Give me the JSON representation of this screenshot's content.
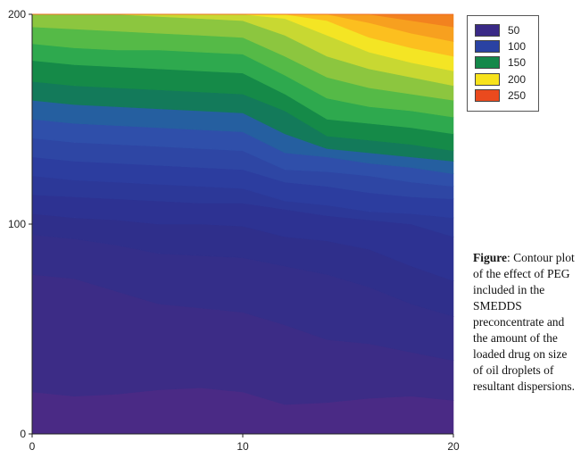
{
  "chart_data": {
    "type": "contour",
    "title": "",
    "xlabel": "",
    "ylabel": "",
    "xlim": [
      0,
      20
    ],
    "ylim": [
      0,
      200
    ],
    "x_ticks": [
      "0",
      "10",
      "20"
    ],
    "y_ticks": [
      "0",
      "100",
      "200"
    ],
    "legend_position": "top-right",
    "levels": [
      {
        "label": "50",
        "color": "#3a2a86"
      },
      {
        "label": "100",
        "color": "#2a42a3"
      },
      {
        "label": "150",
        "color": "#14884a"
      },
      {
        "label": "200",
        "color": "#f7e21c"
      },
      {
        "label": "250",
        "color": "#ea4a1e"
      }
    ],
    "x": [
      0,
      2,
      4,
      6,
      8,
      10,
      12,
      14,
      16,
      18,
      20
    ],
    "boundaries": [
      {
        "value": 10,
        "y": [
          20,
          18,
          19,
          21,
          22,
          20,
          14,
          15,
          17,
          18,
          16
        ]
      },
      {
        "value": 50,
        "y": [
          76,
          74,
          68,
          62,
          60,
          58,
          52,
          45,
          43,
          39,
          35
        ]
      },
      {
        "value": 70,
        "y": [
          95,
          93,
          90,
          86,
          85,
          84,
          80,
          76,
          70,
          62,
          56
        ]
      },
      {
        "value": 85,
        "y": [
          105,
          103,
          102,
          100,
          100,
          99,
          94,
          92,
          88,
          80,
          73
        ]
      },
      {
        "value": 95,
        "y": [
          114,
          113,
          112,
          111,
          110,
          110,
          107,
          104,
          102,
          100,
          94
        ]
      },
      {
        "value": 105,
        "y": [
          123,
          121,
          120,
          119,
          118,
          117,
          111,
          109,
          106,
          105,
          103
        ]
      },
      {
        "value": 115,
        "y": [
          132,
          130,
          129,
          128,
          127,
          126,
          120,
          118,
          115,
          113,
          112
        ]
      },
      {
        "value": 125,
        "y": [
          141,
          139,
          138,
          137,
          136,
          135,
          126,
          125,
          123,
          120,
          118
        ]
      },
      {
        "value": 135,
        "y": [
          150,
          148,
          147,
          146,
          145,
          144,
          134,
          132,
          129,
          127,
          124
        ]
      },
      {
        "value": 145,
        "y": [
          159,
          157,
          156,
          155,
          154,
          153,
          143,
          136,
          134,
          132,
          130
        ]
      },
      {
        "value": 155,
        "y": [
          168,
          166,
          165,
          164,
          163,
          162,
          154,
          142,
          140,
          138,
          135
        ]
      },
      {
        "value": 165,
        "y": [
          178,
          176,
          175,
          174,
          173,
          172,
          162,
          150,
          148,
          146,
          143
        ]
      },
      {
        "value": 175,
        "y": [
          186,
          184,
          183,
          183,
          182,
          181,
          171,
          160,
          156,
          154,
          151
        ]
      },
      {
        "value": 185,
        "y": [
          194,
          193,
          192,
          191,
          190,
          189,
          180,
          170,
          165,
          162,
          159
        ]
      },
      {
        "value": 195,
        "y": [
          200,
          200,
          200,
          199,
          198,
          197,
          190,
          180,
          174,
          170,
          166
        ]
      },
      {
        "value": 205,
        "y": [
          200,
          200,
          200,
          200,
          200,
          200,
          198,
          190,
          182,
          177,
          173
        ]
      },
      {
        "value": 215,
        "y": [
          200,
          200,
          200,
          200,
          200,
          200,
          200,
          197,
          189,
          184,
          180
        ]
      },
      {
        "value": 225,
        "y": [
          200,
          200,
          200,
          200,
          200,
          200,
          200,
          200,
          196,
          191,
          187
        ]
      },
      {
        "value": 235,
        "y": [
          200,
          200,
          200,
          200,
          200,
          200,
          200,
          200,
          200,
          197,
          194
        ]
      },
      {
        "value": 245,
        "y": [
          200,
          200,
          200,
          200,
          200,
          200,
          200,
          200,
          200,
          200,
          200
        ]
      }
    ],
    "band_colors": [
      "#4a2a85",
      "#3c2c86",
      "#342e89",
      "#2f2f8b",
      "#2d3292",
      "#2c3898",
      "#2c3d9f",
      "#2e46a4",
      "#2f4faa",
      "#255fa0",
      "#137a5a",
      "#158a48",
      "#2ea94e",
      "#55ba47",
      "#8cc63f",
      "#c8d832",
      "#f4e524",
      "#fcbf1f",
      "#f7a01f",
      "#f2821f",
      "#ea4a1e"
    ]
  },
  "caption": {
    "lead": "Figure",
    "text": ": Contour plot of the effect of PEG included in the SMEDDS preconcentrate and the amount of the loaded drug on size of oil droplets of resultant dispersions."
  }
}
